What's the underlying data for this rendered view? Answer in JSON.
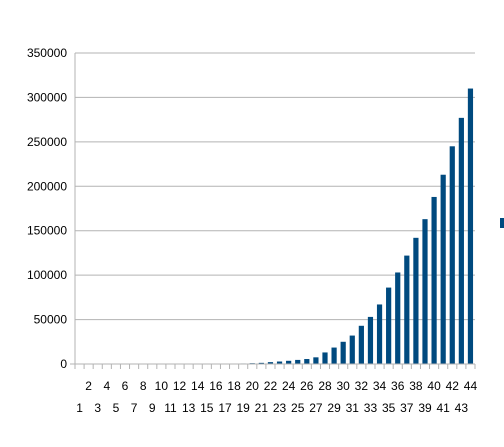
{
  "chart_data": {
    "type": "bar",
    "categories": [
      "1",
      "2",
      "3",
      "4",
      "5",
      "6",
      "7",
      "8",
      "9",
      "10",
      "11",
      "12",
      "13",
      "14",
      "15",
      "16",
      "17",
      "18",
      "19",
      "20",
      "21",
      "22",
      "23",
      "24",
      "25",
      "26",
      "27",
      "28",
      "29",
      "30",
      "31",
      "32",
      "33",
      "34",
      "35",
      "36",
      "37",
      "38",
      "39",
      "40",
      "41",
      "42",
      "43",
      "44"
    ],
    "values": [
      0,
      0,
      0,
      0,
      0,
      0,
      0,
      0,
      0,
      0,
      0,
      0,
      0,
      0,
      0,
      0,
      0,
      0,
      600,
      900,
      1300,
      2100,
      2800,
      3600,
      4600,
      5600,
      7500,
      13000,
      18500,
      25000,
      32000,
      43000,
      53000,
      67000,
      86000,
      103000,
      122000,
      142000,
      163000,
      188000,
      213000,
      245000,
      277000,
      310000
    ],
    "ylim": [
      0,
      350000
    ],
    "yticks": [
      "0",
      "50000",
      "100000",
      "150000",
      "200000",
      "250000",
      "300000",
      "350000"
    ],
    "title": "",
    "xlabel": "",
    "ylabel": "",
    "grid": true,
    "legend": "right",
    "colors": {
      "bar": "#004a7f",
      "grid": "#b3b3b3",
      "axis": "#b3b3b3"
    }
  }
}
